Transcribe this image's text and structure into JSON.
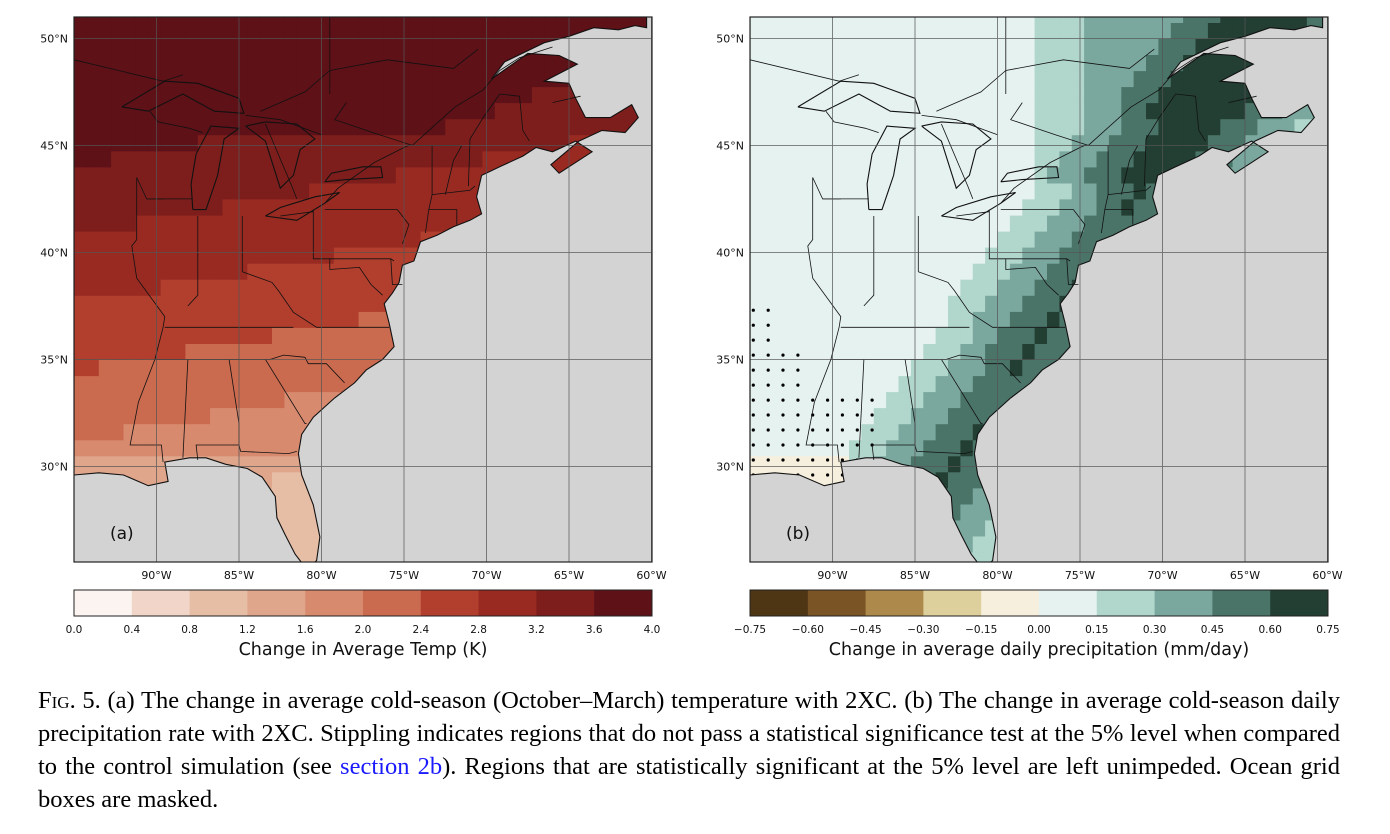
{
  "panel_a": {
    "label": "(a)",
    "lat_ticks": [
      "50°N",
      "45°N",
      "40°N",
      "35°N",
      "30°N"
    ],
    "lon_ticks": [
      "90°W",
      "85°W",
      "80°W",
      "75°W",
      "70°W",
      "65°W",
      "60°W"
    ],
    "colorbar": {
      "title": "Change in Average Temp (K)",
      "ticks": [
        "0.0",
        "0.4",
        "0.8",
        "1.2",
        "1.6",
        "2.0",
        "2.4",
        "2.8",
        "3.2",
        "3.6",
        "4.0"
      ],
      "colors": [
        "#fbf4f1",
        "#f0d5c8",
        "#e6bda5",
        "#dfa68c",
        "#d88a6f",
        "#ca6a4f",
        "#b23e2d",
        "#982a22",
        "#7e1e1c",
        "#5e1117"
      ]
    }
  },
  "panel_b": {
    "label": "(b)",
    "lat_ticks": [
      "50°N",
      "45°N",
      "40°N",
      "35°N",
      "30°N"
    ],
    "lon_ticks": [
      "90°W",
      "85°W",
      "80°W",
      "75°W",
      "70°W",
      "65°W",
      "60°W"
    ],
    "colorbar": {
      "title": "Change in average daily precipitation (mm/day)",
      "ticks": [
        "−0.75",
        "−0.60",
        "−0.45",
        "−0.30",
        "−0.15",
        "0.00",
        "0.15",
        "0.30",
        "0.45",
        "0.60",
        "0.75"
      ],
      "colors": [
        "#4e3514",
        "#7a5424",
        "#ad8a4c",
        "#ded09c",
        "#f6efdd",
        "#e5f2f0",
        "#b1d6cc",
        "#7ba89e",
        "#4b7468",
        "#233f33"
      ]
    }
  },
  "colors": {
    "ocean_mask": "#d3d3d3",
    "border_lines": "#111111",
    "grid_lines": "#555555",
    "link": "#1a1aff"
  },
  "caption": {
    "label": "Fig. 5.",
    "text_before_link": " (a) The change in average cold-season (October–March) temperature with 2XC. (b) The change in average cold-season daily precipitation rate with 2XC. Stippling indicates regions that do not pass a statistical significance test at the 5% level when compared to the control simulation (see ",
    "link_text": "section 2b",
    "text_after_link": "). Regions that are statistically significant at the 5% level are left unimpeded. Ocean grid boxes are masked."
  }
}
